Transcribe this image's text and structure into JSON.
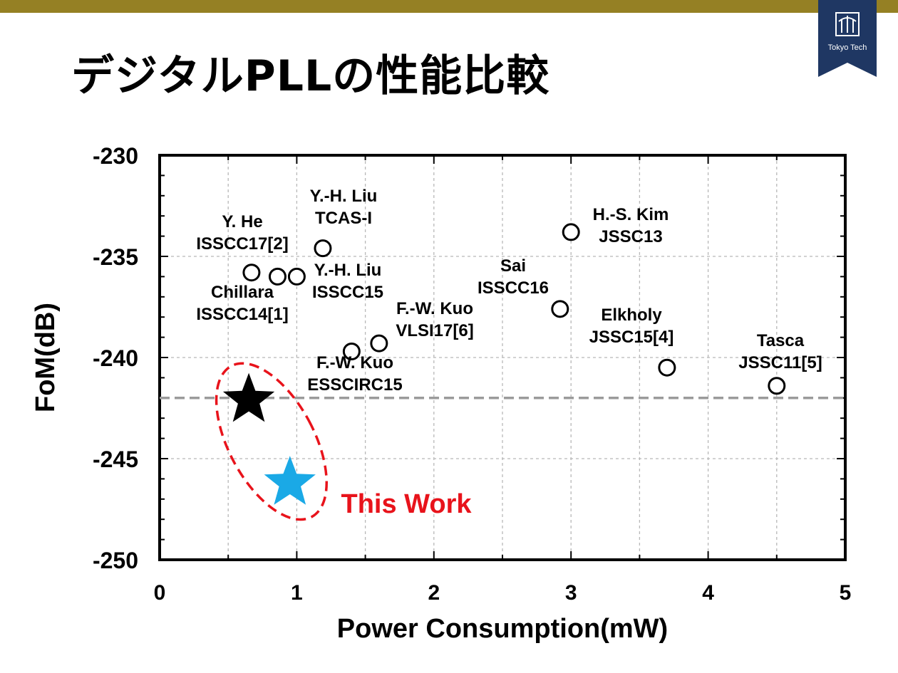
{
  "slide": {
    "title": "デジタルPLLの性能比較",
    "logo_text": "Tokyo Tech",
    "colors": {
      "top_bar": "#958024",
      "logo_bg": "#1f3763",
      "this_work": "#e8131b",
      "ref_star": "#000000",
      "this_star": "#1aa9e6"
    }
  },
  "chart_data": {
    "type": "scatter",
    "xlabel": "Power Consumption(mW)",
    "ylabel": "FoM(dB)",
    "xlim": [
      0,
      5
    ],
    "ylim": [
      -250,
      -230
    ],
    "x_ticks": [
      "0",
      "1",
      "2",
      "3",
      "4",
      "5"
    ],
    "y_ticks": [
      "-230",
      "-235",
      "-240",
      "-245",
      "-250"
    ],
    "grid": true,
    "reference_line_y": -242,
    "points": [
      {
        "x": 0.67,
        "y": -235.8,
        "label": [
          "Chillara",
          "ISSCC14[1]"
        ]
      },
      {
        "x": 0.86,
        "y": -236.0,
        "label": [
          "Y. He",
          "ISSCC17[2]"
        ]
      },
      {
        "x": 1.0,
        "y": -236.0,
        "label": [
          "Y.-H. Liu",
          "ISSCC15"
        ]
      },
      {
        "x": 1.19,
        "y": -234.6,
        "label": [
          "Y.-H. Liu",
          "TCAS-I"
        ]
      },
      {
        "x": 1.4,
        "y": -239.7,
        "label": [
          "F.-W. Kuo",
          "ESSCIRC15"
        ]
      },
      {
        "x": 1.6,
        "y": -239.3,
        "label": [
          "F.-W. Kuo",
          "VLSI17[6]"
        ]
      },
      {
        "x": 2.92,
        "y": -237.6,
        "label": [
          "Sai",
          "ISSCC16"
        ]
      },
      {
        "x": 3.0,
        "y": -233.8,
        "label": [
          "H.-S. Kim",
          "JSSC13"
        ]
      },
      {
        "x": 3.7,
        "y": -240.5,
        "label": [
          "Elkholy",
          "JSSC15[4]"
        ]
      },
      {
        "x": 4.5,
        "y": -241.4,
        "label": [
          "Tasca",
          "JSSC11[5]"
        ]
      }
    ],
    "this_work": {
      "label": "This Work",
      "points": [
        {
          "x": 0.65,
          "y": -242.1,
          "color": "#000000"
        },
        {
          "x": 0.95,
          "y": -246.2,
          "color": "#1aa9e6"
        }
      ]
    }
  }
}
